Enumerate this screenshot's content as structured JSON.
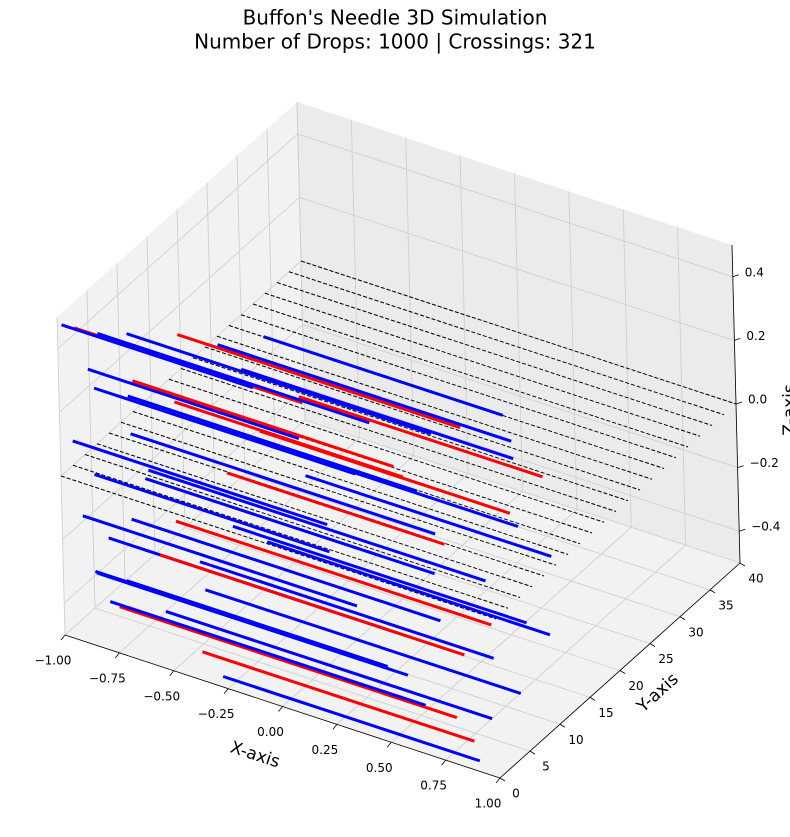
{
  "chart_data": {
    "type": "needles3d",
    "title": "Buffon's Needle 3D Simulation",
    "subtitle": "Number of Drops: 1000 | Crossings: 321",
    "x_label": "X-axis",
    "y_label": "Y-axis",
    "z_label": "Z-axis",
    "xlim": [
      -1,
      1
    ],
    "ylim": [
      0,
      40
    ],
    "zlim": [
      -0.5,
      0.5
    ],
    "xticks": [
      {
        "value": -1,
        "label": "−1.00"
      },
      {
        "value": -0.75,
        "label": "−0.75"
      },
      {
        "value": -0.5,
        "label": "−0.50"
      },
      {
        "value": -0.25,
        "label": "−0.25"
      },
      {
        "value": 0,
        "label": "0.00"
      },
      {
        "value": 0.25,
        "label": "0.25"
      },
      {
        "value": 0.5,
        "label": "0.50"
      },
      {
        "value": 0.75,
        "label": "0.75"
      },
      {
        "value": 1,
        "label": "1.00"
      }
    ],
    "yticks": [
      0,
      5,
      10,
      15,
      20,
      25,
      30,
      35,
      40
    ],
    "zticks": [
      {
        "value": -0.4,
        "label": "−0.4"
      },
      {
        "value": -0.2,
        "label": "−0.2"
      },
      {
        "value": 0,
        "label": "0.0"
      },
      0.2,
      0.4
    ],
    "grid": true,
    "line_color": "#000000",
    "line_positions": [
      0,
      2,
      4,
      6,
      8,
      10,
      12,
      14,
      16,
      18,
      20,
      22,
      24,
      26,
      28,
      30,
      32,
      34,
      36,
      38,
      40
    ],
    "needles": [
      {
        "x": [
          -0.95,
          0.1
        ],
        "y": 1,
        "z": 0.46,
        "color": "#ff0000"
      },
      {
        "x": [
          -0.9,
          0.35
        ],
        "y": 3,
        "z": 0.42,
        "color": "#0000ff"
      },
      {
        "x": [
          -0.85,
          0.55
        ],
        "y": 6,
        "z": 0.38,
        "color": "#0000ff"
      },
      {
        "x": [
          -0.7,
          0.6
        ],
        "y": 9,
        "z": 0.36,
        "color": "#ff0000"
      },
      {
        "x": [
          -0.92,
          0.05
        ],
        "y": 2,
        "z": 0.32,
        "color": "#0000ff"
      },
      {
        "x": [
          -0.6,
          0.75
        ],
        "y": 12,
        "z": 0.3,
        "color": "#0000ff"
      },
      {
        "x": [
          -0.8,
          0.4
        ],
        "y": 5,
        "z": 0.26,
        "color": "#ff0000"
      },
      {
        "x": [
          -0.95,
          0.25
        ],
        "y": 4,
        "z": 0.22,
        "color": "#0000ff"
      },
      {
        "x": [
          -0.55,
          0.7
        ],
        "y": 14,
        "z": 0.2,
        "color": "#0000ff"
      },
      {
        "x": [
          -0.88,
          0.45
        ],
        "y": 7,
        "z": 0.16,
        "color": "#0000ff"
      },
      {
        "x": [
          -0.75,
          0.3
        ],
        "y": 10,
        "z": 0.12,
        "color": "#ff0000"
      },
      {
        "x": [
          -0.97,
          0.2
        ],
        "y": 1,
        "z": 0.1,
        "color": "#0000ff"
      },
      {
        "x": [
          -0.65,
          0.8
        ],
        "y": 11,
        "z": 0.06,
        "color": "#0000ff"
      },
      {
        "x": [
          -0.9,
          0.5
        ],
        "y": 8,
        "z": 0.02,
        "color": "#0000ff"
      },
      {
        "x": [
          -0.5,
          0.65
        ],
        "y": 15,
        "z": 0.0,
        "color": "#ff0000"
      },
      {
        "x": [
          -0.93,
          0.15
        ],
        "y": 3,
        "z": -0.03,
        "color": "#0000ff"
      },
      {
        "x": [
          -0.78,
          0.55
        ],
        "y": 6,
        "z": -0.06,
        "color": "#0000ff"
      },
      {
        "x": [
          -0.85,
          0.7
        ],
        "y": 9,
        "z": -0.1,
        "color": "#0000ff"
      },
      {
        "x": [
          -0.6,
          0.4
        ],
        "y": 13,
        "z": -0.12,
        "color": "#ff0000"
      },
      {
        "x": [
          -0.96,
          0.3
        ],
        "y": 2,
        "z": -0.15,
        "color": "#0000ff"
      },
      {
        "x": [
          -0.82,
          0.6
        ],
        "y": 5,
        "z": -0.18,
        "color": "#0000ff"
      },
      {
        "x": [
          -0.7,
          0.75
        ],
        "y": 8,
        "z": -0.21,
        "color": "#ff0000"
      },
      {
        "x": [
          -0.9,
          0.45
        ],
        "y": 4,
        "z": -0.24,
        "color": "#0000ff"
      },
      {
        "x": [
          -0.55,
          0.8
        ],
        "y": 12,
        "z": -0.26,
        "color": "#0000ff"
      },
      {
        "x": [
          -0.88,
          0.25
        ],
        "y": 1,
        "z": -0.29,
        "color": "#0000ff"
      },
      {
        "x": [
          -0.75,
          0.65
        ],
        "y": 7,
        "z": -0.31,
        "color": "#ff0000"
      },
      {
        "x": [
          -0.93,
          0.5
        ],
        "y": 3,
        "z": -0.34,
        "color": "#0000ff"
      },
      {
        "x": [
          -0.65,
          0.7
        ],
        "y": 10,
        "z": -0.36,
        "color": "#0000ff"
      },
      {
        "x": [
          -0.85,
          0.35
        ],
        "y": 5,
        "z": -0.38,
        "color": "#0000ff"
      },
      {
        "x": [
          -0.8,
          0.75
        ],
        "y": 2,
        "z": -0.4,
        "color": "#ff0000"
      },
      {
        "x": [
          -0.6,
          0.85
        ],
        "y": 9,
        "z": -0.42,
        "color": "#0000ff"
      },
      {
        "x": [
          -0.9,
          0.55
        ],
        "y": 4,
        "z": -0.44,
        "color": "#0000ff"
      },
      {
        "x": [
          -0.7,
          0.8
        ],
        "y": 6,
        "z": -0.46,
        "color": "#0000ff"
      },
      {
        "x": [
          -0.45,
          0.8
        ],
        "y": 3,
        "z": -0.48,
        "color": "#ff0000"
      },
      {
        "x": [
          -0.3,
          0.88
        ],
        "y": 1,
        "z": -0.49,
        "color": "#0000ff"
      },
      {
        "x": [
          -0.5,
          0.6
        ],
        "y": 16,
        "z": 0.28,
        "color": "#0000ff"
      },
      {
        "x": [
          -0.4,
          0.72
        ],
        "y": 18,
        "z": 0.08,
        "color": "#ff0000"
      },
      {
        "x": [
          -0.35,
          0.78
        ],
        "y": 17,
        "z": -0.14,
        "color": "#0000ff"
      },
      {
        "x": [
          -0.98,
          -0.1
        ],
        "y": 0,
        "z": 0.48,
        "color": "#0000ff"
      },
      {
        "x": [
          -0.45,
          0.85
        ],
        "y": 14,
        "z": -0.32,
        "color": "#0000ff"
      }
    ]
  }
}
